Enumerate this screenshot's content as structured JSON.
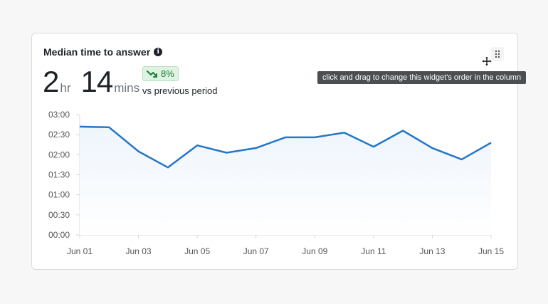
{
  "widget": {
    "title": "Median time to answer",
    "info_icon": "info-icon",
    "hours_value": "2",
    "hours_unit": "hr",
    "minutes_value": "14",
    "minutes_unit": "mins",
    "delta_text": "8%",
    "delta_icon": "trend-down-icon",
    "comparison_label": "vs previous period",
    "drag_handle_icon": "drag-dots-icon",
    "cursor_icon": "move-cursor-icon",
    "tooltip": "click and drag to change this widget's order in the column",
    "colors": {
      "line": "#2277c6",
      "area": "#eef5fc",
      "delta_text": "#1a7f37",
      "delta_bg": "#dff3e2"
    }
  },
  "chart_data": {
    "type": "line",
    "x": [
      "Jun 01",
      "Jun 02",
      "Jun 03",
      "Jun 04",
      "Jun 05",
      "Jun 06",
      "Jun 07",
      "Jun 08",
      "Jun 09",
      "Jun 10",
      "Jun 11",
      "Jun 12",
      "Jun 13",
      "Jun 14",
      "Jun 15"
    ],
    "x_tick_labels": [
      "Jun 01",
      "Jun 03",
      "Jun 05",
      "Jun 07",
      "Jun 09",
      "Jun 11",
      "Jun 13",
      "Jun 15"
    ],
    "y_tick_labels": [
      "00:00",
      "00:30",
      "01:00",
      "01:30",
      "02:00",
      "02:30",
      "03:00"
    ],
    "y_ticks_minutes": [
      0,
      30,
      60,
      90,
      120,
      150,
      180
    ],
    "series": [
      {
        "values": [
          162,
          161,
          125,
          101,
          134,
          123,
          130,
          146,
          146,
          153,
          132,
          156,
          130,
          113,
          138
        ]
      }
    ],
    "ylim": [
      0,
      180
    ],
    "area_fill": true,
    "grid": false
  }
}
